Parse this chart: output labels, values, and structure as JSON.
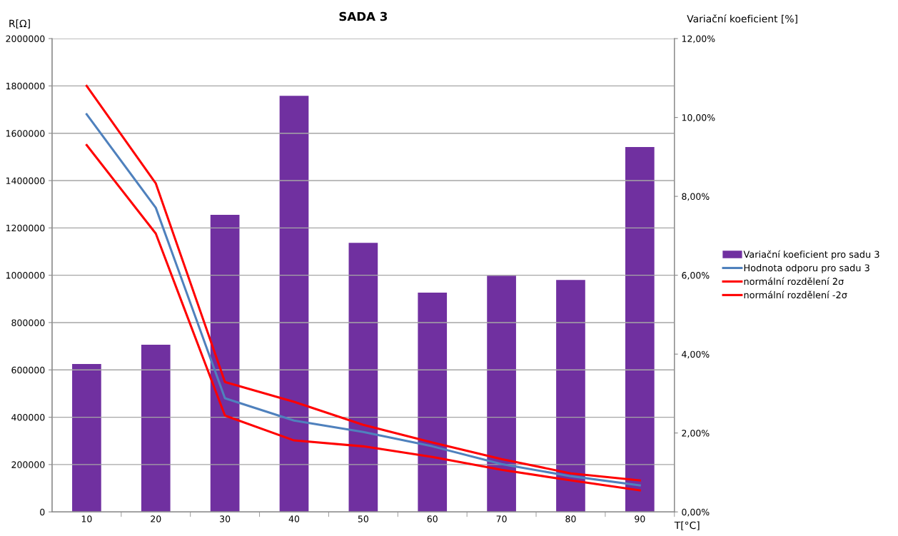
{
  "chart_data": {
    "type": "bar",
    "title": "SADA 3",
    "xlabel": "T[°C]",
    "ylabel": "R[Ω]",
    "y2label": "Variační koeficient [%]",
    "categories": [
      "10",
      "20",
      "30",
      "40",
      "50",
      "60",
      "70",
      "80",
      "90"
    ],
    "series": [
      {
        "name": "Variační koeficient pro sadu 3",
        "axis": "y2",
        "color": "#7030a0",
        "values": [
          3.75,
          4.24,
          7.53,
          10.55,
          6.82,
          5.56,
          5.99,
          5.88,
          9.25
        ]
      },
      {
        "name": "Hodnota odporu pro sadu 3",
        "type": "line",
        "color": "#4f81bd",
        "values": [
          1680000,
          1285000,
          480000,
          386000,
          338000,
          277000,
          202000,
          151000,
          112000
        ]
      },
      {
        "name": "normální rozdělení 2σ",
        "type": "line",
        "color": "#ff0000",
        "values": [
          1800000,
          1388000,
          549000,
          465000,
          368000,
          293000,
          223000,
          163000,
          133000
        ]
      },
      {
        "name": "normální rozdělení -2σ",
        "type": "line",
        "color": "#ff0000",
        "values": [
          1550000,
          1176000,
          407000,
          302000,
          277000,
          232000,
          178000,
          133000,
          91000
        ]
      }
    ],
    "ylim": [
      0,
      2000000
    ],
    "yticks": [
      0,
      200000,
      400000,
      600000,
      800000,
      1000000,
      1200000,
      1400000,
      1600000,
      1800000,
      2000000
    ],
    "y2lim": [
      0,
      12
    ],
    "y2ticks": [
      {
        "value": 0,
        "label": "0,00%"
      },
      {
        "value": 2,
        "label": "2,00%"
      },
      {
        "value": 4,
        "label": "4,00%"
      },
      {
        "value": 6,
        "label": "6,00%"
      },
      {
        "value": 8,
        "label": "8,00%"
      },
      {
        "value": 10,
        "label": "10,00%"
      },
      {
        "value": 12,
        "label": "12,00%"
      }
    ],
    "grid": "y",
    "legend": "right",
    "marker": "none",
    "line_style": "solid"
  }
}
